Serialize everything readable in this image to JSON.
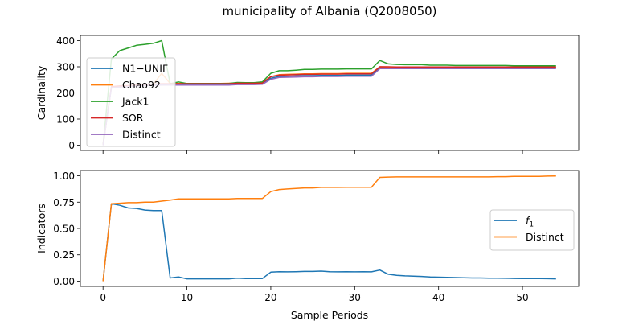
{
  "figure": {
    "title": "municipality of Albania (Q2008050)",
    "xlabel": "Sample Periods"
  },
  "chart_data": [
    {
      "type": "line",
      "ylabel": "Cardinality",
      "xlim": [
        -2.7,
        56.7
      ],
      "ylim": [
        -20,
        420
      ],
      "xticks": [
        0,
        10,
        20,
        30,
        40,
        50
      ],
      "yticks": [
        0,
        100,
        200,
        300,
        400
      ],
      "show_xtick_labels": false,
      "grid": false,
      "legend_position": "center-left",
      "x": [
        0,
        1,
        2,
        3,
        4,
        5,
        6,
        7,
        8,
        9,
        10,
        11,
        12,
        13,
        14,
        15,
        16,
        17,
        18,
        19,
        20,
        21,
        22,
        23,
        24,
        25,
        26,
        27,
        28,
        29,
        30,
        31,
        32,
        33,
        34,
        35,
        36,
        37,
        38,
        39,
        40,
        41,
        42,
        43,
        44,
        45,
        46,
        47,
        48,
        49,
        50,
        51,
        52,
        53,
        54
      ],
      "series": [
        {
          "name": "N1−UNIF",
          "color": "#1f77b4",
          "values": [
            0,
            222,
            225,
            226,
            229,
            230,
            231,
            232,
            233,
            234,
            234,
            234,
            234,
            234,
            234,
            234,
            235,
            235,
            235,
            236,
            256,
            263,
            264,
            265,
            266,
            266,
            267,
            267,
            267,
            268,
            268,
            268,
            268,
            296,
            296,
            296,
            296,
            296,
            296,
            296,
            296,
            296,
            296,
            296,
            296,
            296,
            296,
            296,
            296,
            296,
            296,
            296,
            296,
            296,
            296
          ]
        },
        {
          "name": "Chao92",
          "color": "#ff7f0e",
          "values": [
            0,
            222,
            225,
            226,
            229,
            231,
            233,
            275,
            236,
            236,
            236,
            236,
            236,
            236,
            236,
            237,
            238,
            238,
            238,
            240,
            262,
            270,
            271,
            272,
            273,
            273,
            274,
            274,
            274,
            275,
            275,
            275,
            275,
            300,
            299,
            298,
            298,
            298,
            298,
            298,
            298,
            298,
            298,
            298,
            298,
            298,
            298,
            298,
            298,
            298,
            298,
            298,
            298,
            298,
            298
          ]
        },
        {
          "name": "Jack1",
          "color": "#2ca02c",
          "values": [
            0,
            330,
            362,
            372,
            382,
            386,
            390,
            400,
            235,
            242,
            236,
            236,
            236,
            236,
            236,
            236,
            240,
            239,
            239,
            242,
            275,
            285,
            285,
            287,
            290,
            290,
            291,
            291,
            291,
            292,
            292,
            292,
            292,
            324,
            311,
            309,
            308,
            308,
            308,
            306,
            306,
            306,
            305,
            305,
            305,
            305,
            305,
            305,
            305,
            304,
            304,
            304,
            304,
            304,
            304
          ]
        },
        {
          "name": "SOR",
          "color": "#d62728",
          "values": [
            0,
            224,
            227,
            228,
            230,
            232,
            234,
            235,
            235,
            235,
            235,
            235,
            235,
            235,
            235,
            235,
            237,
            237,
            237,
            238,
            262,
            268,
            269,
            270,
            271,
            271,
            272,
            272,
            272,
            273,
            273,
            273,
            273,
            300,
            300,
            299,
            299,
            299,
            299,
            299,
            299,
            299,
            299,
            299,
            299,
            299,
            299,
            299,
            299,
            299,
            299,
            299,
            299,
            299,
            299
          ]
        },
        {
          "name": "Distinct",
          "color": "#9467bd",
          "values": [
            0,
            220,
            222,
            224,
            226,
            228,
            229,
            230,
            230,
            230,
            230,
            230,
            230,
            230,
            230,
            230,
            232,
            232,
            232,
            233,
            252,
            259,
            260,
            261,
            262,
            262,
            263,
            263,
            263,
            264,
            264,
            264,
            264,
            293,
            293,
            293,
            293,
            293,
            293,
            293,
            293,
            293,
            293,
            293,
            293,
            293,
            293,
            293,
            293,
            293,
            293,
            293,
            293,
            293,
            293
          ]
        }
      ]
    },
    {
      "type": "line",
      "ylabel": "Indicators",
      "xlabel": "Sample Periods",
      "xlim": [
        -2.7,
        56.7
      ],
      "ylim": [
        -0.05,
        1.05
      ],
      "xticks": [
        0,
        10,
        20,
        30,
        40,
        50
      ],
      "yticks": [
        0.0,
        0.25,
        0.5,
        0.75,
        1.0
      ],
      "ytick_labels": [
        "0.00",
        "0.25",
        "0.50",
        "0.75",
        "1.00"
      ],
      "show_xtick_labels": true,
      "grid": false,
      "legend_position": "center-right",
      "x": [
        0,
        1,
        2,
        3,
        4,
        5,
        6,
        7,
        8,
        9,
        10,
        11,
        12,
        13,
        14,
        15,
        16,
        17,
        18,
        19,
        20,
        21,
        22,
        23,
        24,
        25,
        26,
        27,
        28,
        29,
        30,
        31,
        32,
        33,
        34,
        35,
        36,
        37,
        38,
        39,
        40,
        41,
        42,
        43,
        44,
        45,
        46,
        47,
        48,
        49,
        50,
        51,
        52,
        53,
        54
      ],
      "series": [
        {
          "name": "f",
          "name_subscript": "1",
          "color": "#1f77b4",
          "values": [
            0.0,
            0.735,
            0.72,
            0.695,
            0.69,
            0.675,
            0.67,
            0.67,
            0.03,
            0.04,
            0.022,
            0.022,
            0.022,
            0.022,
            0.022,
            0.022,
            0.028,
            0.025,
            0.025,
            0.025,
            0.085,
            0.09,
            0.088,
            0.09,
            0.092,
            0.092,
            0.095,
            0.09,
            0.088,
            0.09,
            0.088,
            0.09,
            0.088,
            0.105,
            0.065,
            0.055,
            0.05,
            0.048,
            0.045,
            0.04,
            0.038,
            0.036,
            0.034,
            0.032,
            0.03,
            0.03,
            0.029,
            0.028,
            0.027,
            0.026,
            0.025,
            0.025,
            0.024,
            0.023,
            0.022
          ]
        },
        {
          "name": "Distinct",
          "color": "#ff7f0e",
          "values": [
            0.0,
            0.735,
            0.74,
            0.745,
            0.745,
            0.75,
            0.75,
            0.76,
            0.77,
            0.78,
            0.78,
            0.78,
            0.78,
            0.78,
            0.78,
            0.78,
            0.785,
            0.785,
            0.785,
            0.785,
            0.85,
            0.87,
            0.875,
            0.88,
            0.885,
            0.885,
            0.89,
            0.89,
            0.89,
            0.892,
            0.892,
            0.892,
            0.892,
            0.985,
            0.988,
            0.99,
            0.99,
            0.99,
            0.99,
            0.99,
            0.99,
            0.99,
            0.99,
            0.99,
            0.99,
            0.99,
            0.99,
            0.992,
            0.992,
            0.995,
            0.995,
            0.995,
            0.995,
            0.997,
            0.998
          ]
        }
      ]
    }
  ]
}
